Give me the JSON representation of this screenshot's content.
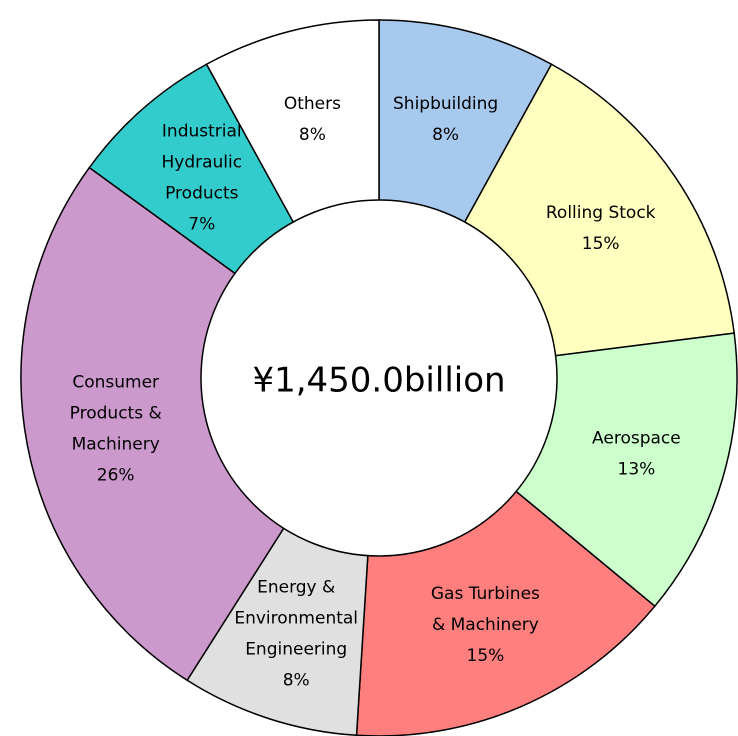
{
  "chart_data": {
    "type": "pie",
    "donut": true,
    "center_label": "¥1,450.0billion",
    "slices": [
      {
        "label_lines": [
          "Shipbuilding",
          "8%"
        ],
        "value": 8,
        "color": "#a7c9ee"
      },
      {
        "label_lines": [
          "Rolling Stock",
          "15%"
        ],
        "value": 15,
        "color": "#ffffc0"
      },
      {
        "label_lines": [
          "Aerospace",
          "13%"
        ],
        "value": 13,
        "color": "#ccffcc"
      },
      {
        "label_lines": [
          "Gas Turbines",
          "& Machinery",
          "15%"
        ],
        "value": 15,
        "color": "#ff7f7f"
      },
      {
        "label_lines": [
          "Energy &",
          "Environmental",
          "Engineering",
          "8%"
        ],
        "value": 8,
        "color": "#e0e0e0"
      },
      {
        "label_lines": [
          "Consumer",
          "Products &",
          "Machinery",
          "26%"
        ],
        "value": 26,
        "color": "#cc99cc"
      },
      {
        "label_lines": [
          "Industrial",
          "Hydraulic",
          "Products",
          "7%"
        ],
        "value": 7,
        "color": "#33cccc"
      },
      {
        "label_lines": [
          "Others",
          "8%"
        ],
        "value": 8,
        "color": "#ffffff"
      }
    ]
  }
}
